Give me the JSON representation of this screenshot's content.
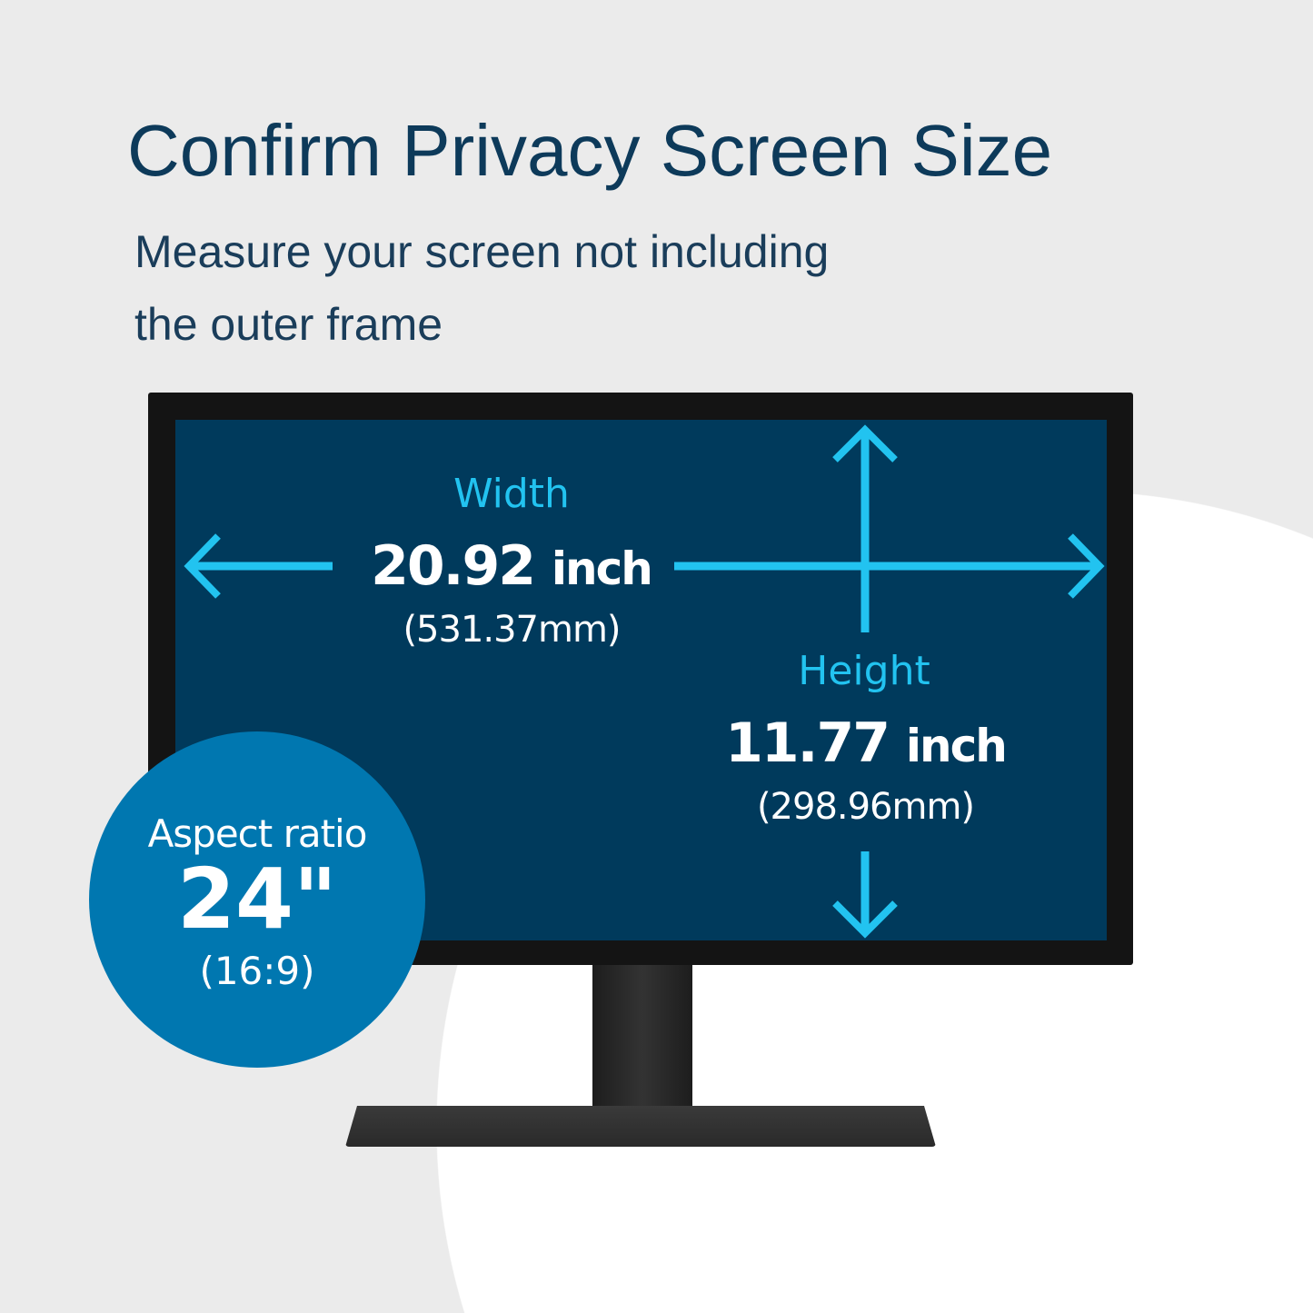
{
  "title": "Confirm Privacy Screen Size",
  "subtitle_lines": [
    "Measure your screen not including",
    "the outer frame"
  ],
  "width": {
    "label": "Width",
    "value": "20.92",
    "unit": "inch",
    "mm": "(531.37mm)"
  },
  "height": {
    "label": "Height",
    "value": "11.77",
    "unit": "inch",
    "mm": "(298.96mm)"
  },
  "aspect": {
    "label": "Aspect ratio",
    "size": "24\"",
    "ratio": "(16:9)"
  },
  "colors": {
    "background": "#ebebeb",
    "screen": "#003a5c",
    "accent": "#22c3f0",
    "badge": "#0077b0",
    "title": "#0d3a5a"
  }
}
